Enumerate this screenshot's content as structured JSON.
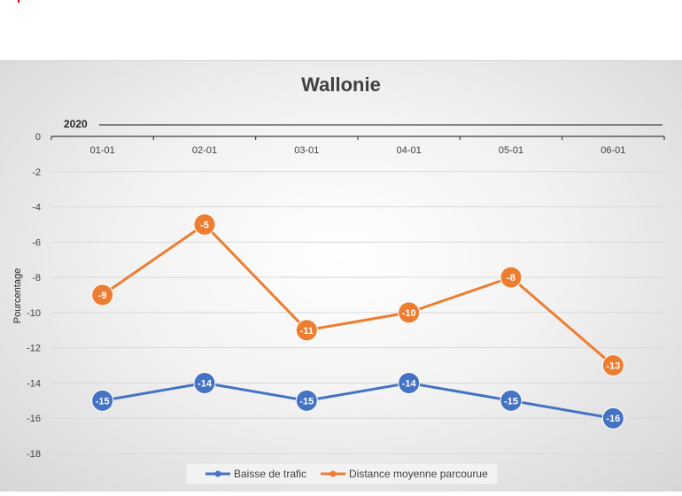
{
  "chart_data": {
    "type": "line",
    "title": "Wallonie",
    "group_label": "2020",
    "ylabel": "Pourcentage",
    "xlabel": "",
    "categories": [
      "01-01",
      "02-01",
      "03-01",
      "04-01",
      "05-01",
      "06-01"
    ],
    "ylim": [
      -18,
      0
    ],
    "y_ticks": [
      0,
      -2,
      -4,
      -6,
      -8,
      -10,
      -12,
      -14,
      -16,
      -18
    ],
    "grid": true,
    "legend_position": "bottom",
    "series": [
      {
        "name": "Baisse de trafic",
        "color": "#4472c4",
        "values": [
          -15,
          -14,
          -15,
          -14,
          -15,
          -16
        ]
      },
      {
        "name": "Distance moyenne parcourue",
        "color": "#ed7d31",
        "values": [
          -9,
          -5,
          -11,
          -10,
          -8,
          -13
        ]
      }
    ]
  }
}
